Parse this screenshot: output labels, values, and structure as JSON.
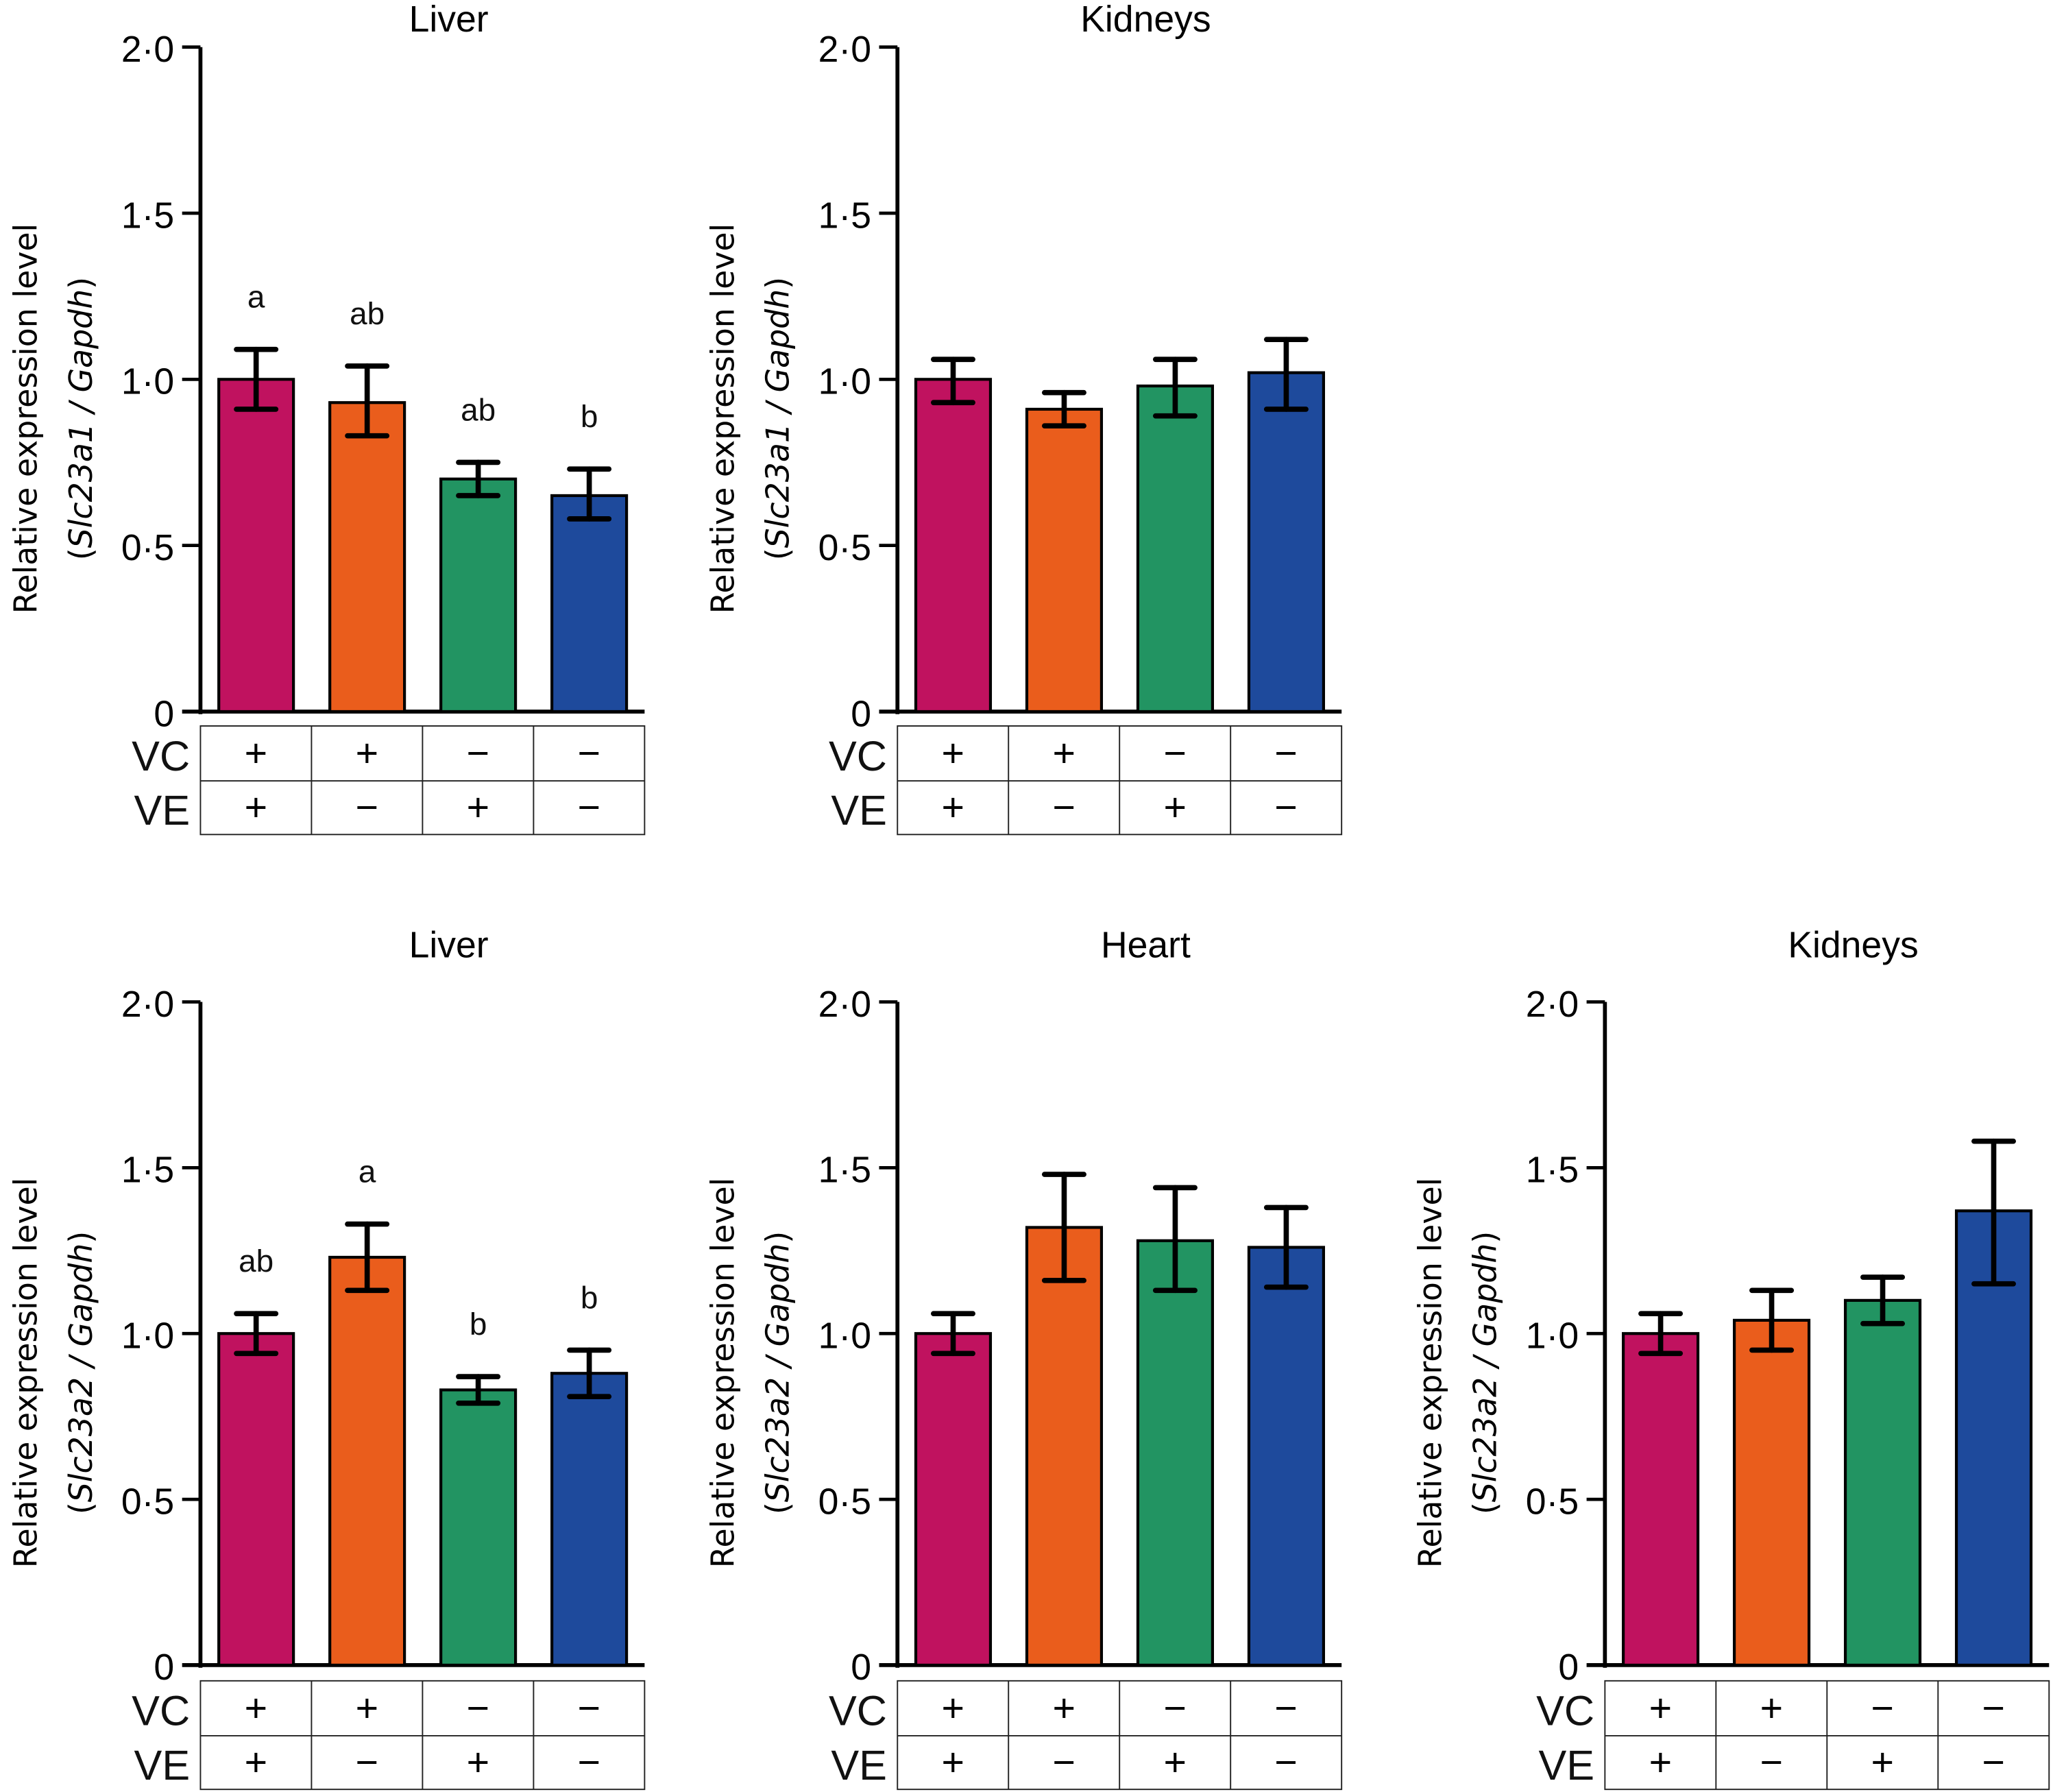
{
  "colors": {
    "group1": "#C0125F",
    "group2": "#EA5D1C",
    "group3": "#229462",
    "group4": "#1E4A9C"
  },
  "row_labels": [
    "VC",
    "VE"
  ],
  "groups": [
    {
      "VC": "+",
      "VE": "+"
    },
    {
      "VC": "+",
      "VE": "−"
    },
    {
      "VC": "−",
      "VE": "+"
    },
    {
      "VC": "−",
      "VE": "−"
    }
  ],
  "chart_data": [
    {
      "type": "bar",
      "title": "Liver",
      "gene": "Slc23a1",
      "ylabel": "Relative expression level",
      "ylabel_sub": [
        "(",
        "Slc23a1 / Gapdh",
        ")"
      ],
      "ylim": [
        0,
        2.0
      ],
      "yticks": [
        0,
        0.5,
        1.0,
        1.5,
        2.0
      ],
      "ytick_labels": [
        "0",
        "0·5",
        "1·0",
        "1·5",
        "2·0"
      ],
      "categories": [
        "VC+ VE+",
        "VC+ VE−",
        "VC− VE+",
        "VC− VE−"
      ],
      "values": [
        1.0,
        0.93,
        0.7,
        0.65
      ],
      "error_upper": [
        1.09,
        1.04,
        0.75,
        0.73
      ],
      "error_lower": [
        0.91,
        0.83,
        0.65,
        0.58
      ],
      "significance": [
        "a",
        "ab",
        "ab",
        "b"
      ]
    },
    {
      "type": "bar",
      "title": "Kidneys",
      "gene": "Slc23a1",
      "ylabel": "Relative expression level",
      "ylabel_sub": [
        "(",
        "Slc23a1 / Gapdh",
        ")"
      ],
      "ylim": [
        0,
        2.0
      ],
      "yticks": [
        0,
        0.5,
        1.0,
        1.5,
        2.0
      ],
      "ytick_labels": [
        "0",
        "0·5",
        "1·0",
        "1·5",
        "2·0"
      ],
      "categories": [
        "VC+ VE+",
        "VC+ VE−",
        "VC− VE+",
        "VC− VE−"
      ],
      "values": [
        1.0,
        0.91,
        0.98,
        1.02
      ],
      "error_upper": [
        1.06,
        0.96,
        1.06,
        1.12
      ],
      "error_lower": [
        0.93,
        0.86,
        0.89,
        0.91
      ],
      "significance": [
        "",
        "",
        "",
        ""
      ]
    },
    {
      "type": "bar",
      "title": "Liver",
      "gene": "Slc23a2",
      "ylabel": "Relative expression level",
      "ylabel_sub": [
        "(",
        "Slc23a2 / Gapdh",
        ")"
      ],
      "ylim": [
        0,
        2.0
      ],
      "yticks": [
        0,
        0.5,
        1.0,
        1.5,
        2.0
      ],
      "ytick_labels": [
        "0",
        "0·5",
        "1·0",
        "1·5",
        "2·0"
      ],
      "categories": [
        "VC+ VE+",
        "VC+ VE−",
        "VC− VE+",
        "VC− VE−"
      ],
      "values": [
        1.0,
        1.23,
        0.83,
        0.88
      ],
      "error_upper": [
        1.06,
        1.33,
        0.87,
        0.95
      ],
      "error_lower": [
        0.94,
        1.13,
        0.79,
        0.81
      ],
      "significance": [
        "ab",
        "a",
        "b",
        "b"
      ]
    },
    {
      "type": "bar",
      "title": "Heart",
      "gene": "Slc23a2",
      "ylabel": "Relative expression level",
      "ylabel_sub": [
        "(",
        "Slc23a2 / Gapdh",
        ")"
      ],
      "ylim": [
        0,
        2.0
      ],
      "yticks": [
        0,
        0.5,
        1.0,
        1.5,
        2.0
      ],
      "ytick_labels": [
        "0",
        "0·5",
        "1·0",
        "1·5",
        "2·0"
      ],
      "categories": [
        "VC+ VE+",
        "VC+ VE−",
        "VC− VE+",
        "VC− VE−"
      ],
      "values": [
        1.0,
        1.32,
        1.28,
        1.26
      ],
      "error_upper": [
        1.06,
        1.48,
        1.44,
        1.38
      ],
      "error_lower": [
        0.94,
        1.16,
        1.13,
        1.14
      ],
      "significance": [
        "",
        "",
        "",
        ""
      ]
    },
    {
      "type": "bar",
      "title": "Kidneys",
      "gene": "Slc23a2",
      "ylabel": "Relative expression level",
      "ylabel_sub": [
        "(",
        "Slc23a2 / Gapdh",
        ")"
      ],
      "ylim": [
        0,
        2.0
      ],
      "yticks": [
        0,
        0.5,
        1.0,
        1.5,
        2.0
      ],
      "ytick_labels": [
        "0",
        "0·5",
        "1·0",
        "1·5",
        "2·0"
      ],
      "categories": [
        "VC+ VE+",
        "VC+ VE−",
        "VC− VE+",
        "VC− VE−"
      ],
      "values": [
        1.0,
        1.04,
        1.1,
        1.37
      ],
      "error_upper": [
        1.06,
        1.13,
        1.17,
        1.58
      ],
      "error_lower": [
        0.94,
        0.95,
        1.03,
        1.15
      ],
      "significance": [
        "",
        "",
        "",
        ""
      ]
    }
  ]
}
